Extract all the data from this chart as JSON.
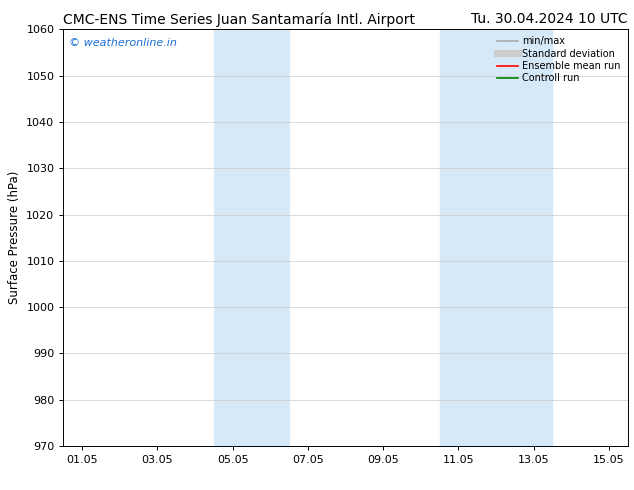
{
  "title_left": "CMC-ENS Time Series Juan Santamaría Intl. Airport",
  "title_right": "Tu. 30.04.2024 10 UTC",
  "ylabel": "Surface Pressure (hPa)",
  "xlabel": "",
  "ylim": [
    970,
    1060
  ],
  "yticks": [
    970,
    980,
    990,
    1000,
    1010,
    1020,
    1030,
    1040,
    1050,
    1060
  ],
  "xtick_labels": [
    "01.05",
    "03.05",
    "05.05",
    "07.05",
    "09.05",
    "11.05",
    "13.05",
    "15.05"
  ],
  "xtick_positions": [
    0,
    2,
    4,
    6,
    8,
    10,
    12,
    14
  ],
  "xmin": -0.5,
  "xmax": 14.5,
  "shaded_bands": [
    {
      "xmin": 3.5,
      "xmax": 5.5
    },
    {
      "xmin": 9.5,
      "xmax": 12.5
    }
  ],
  "shade_color": "#d6e9f8",
  "watermark_text": "© weatheronline.in",
  "watermark_color": "#1a6fd4",
  "legend_items": [
    {
      "label": "min/max",
      "color": "#aaaaaa",
      "lw": 1.2,
      "style": "solid"
    },
    {
      "label": "Standard deviation",
      "color": "#cccccc",
      "lw": 5,
      "style": "solid"
    },
    {
      "label": "Ensemble mean run",
      "color": "#ff0000",
      "lw": 1.2,
      "style": "solid"
    },
    {
      "label": "Controll run",
      "color": "#008000",
      "lw": 1.2,
      "style": "solid"
    }
  ],
  "bg_color": "#ffffff",
  "grid_color": "#cccccc",
  "title_fontsize": 10,
  "tick_fontsize": 8,
  "ylabel_fontsize": 8.5,
  "legend_fontsize": 7,
  "watermark_fontsize": 8
}
